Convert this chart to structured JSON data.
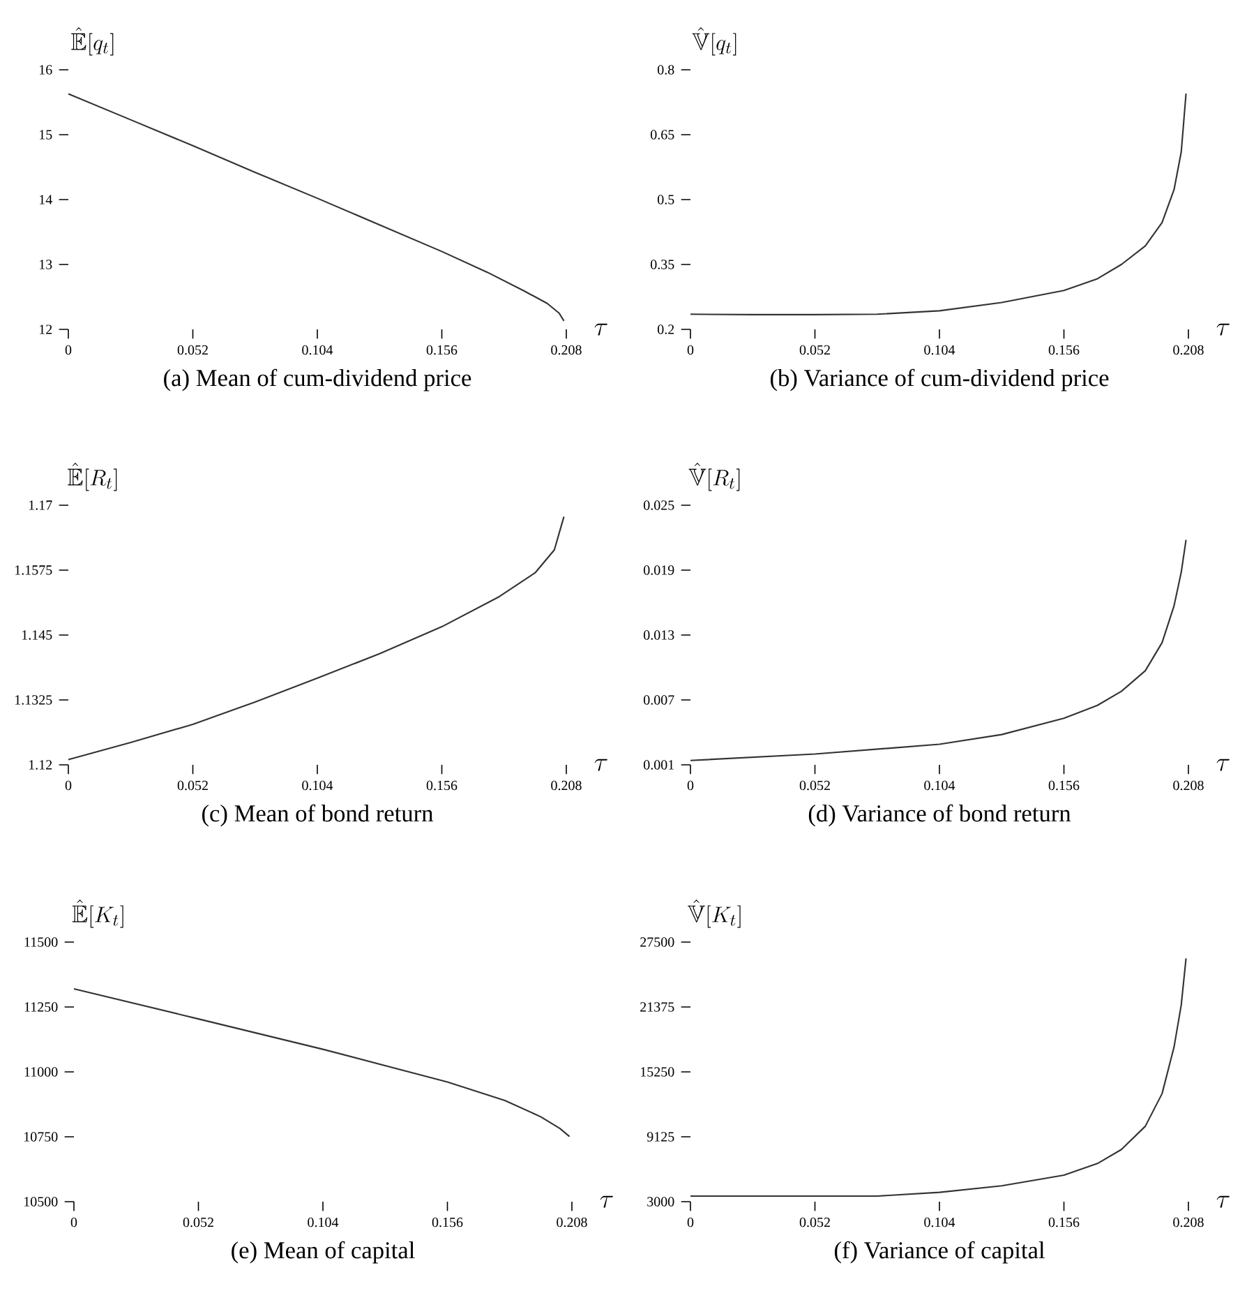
{
  "chart_data": [
    {
      "type": "line",
      "title": "(a) Mean of cum-dividend price",
      "xlabel": "\\tau",
      "ylabel": "\\hat{\\mathbb{E}}[q_t]",
      "color": "#333333",
      "x": [
        0,
        0.026,
        0.052,
        0.078,
        0.104,
        0.13,
        0.156,
        0.175,
        0.19,
        0.2,
        0.205,
        0.207
      ],
      "values": [
        15.63,
        15.23,
        14.83,
        14.42,
        14.02,
        13.61,
        13.2,
        12.88,
        12.6,
        12.4,
        12.25,
        12.13
      ],
      "xlim": [
        0,
        0.208
      ],
      "ylim": [
        12,
        16
      ],
      "xticks": [
        0,
        0.052,
        0.104,
        0.156,
        0.208
      ],
      "yticks": [
        12,
        13,
        14,
        15,
        16
      ]
    },
    {
      "type": "line",
      "title": "(b) Variance of cum-dividend price",
      "xlabel": "\\tau",
      "ylabel": "\\hat{\\mathbb{V}}[q_t]",
      "color": "#333333",
      "x": [
        0,
        0.026,
        0.052,
        0.078,
        0.104,
        0.13,
        0.156,
        0.17,
        0.18,
        0.19,
        0.197,
        0.202,
        0.205,
        0.207
      ],
      "values": [
        0.235,
        0.234,
        0.234,
        0.235,
        0.243,
        0.262,
        0.29,
        0.317,
        0.35,
        0.393,
        0.447,
        0.523,
        0.61,
        0.745
      ],
      "xlim": [
        0,
        0.208
      ],
      "ylim": [
        0.2,
        0.8
      ],
      "xticks": [
        0,
        0.052,
        0.104,
        0.156,
        0.208
      ],
      "yticks": [
        0.2,
        0.35,
        0.5,
        0.65,
        0.8
      ]
    },
    {
      "type": "line",
      "title": "(c) Mean of bond return",
      "xlabel": "\\tau",
      "ylabel": "\\hat{\\mathbb{E}}[R_t]",
      "color": "#333333",
      "x": [
        0,
        0.026,
        0.052,
        0.078,
        0.104,
        0.13,
        0.156,
        0.18,
        0.195,
        0.203,
        0.207
      ],
      "values": [
        1.121,
        1.1243,
        1.1278,
        1.1321,
        1.1367,
        1.1414,
        1.1466,
        1.1524,
        1.157,
        1.1614,
        1.1678
      ],
      "xlim": [
        0,
        0.208
      ],
      "ylim": [
        1.12,
        1.17
      ],
      "xticks": [
        0,
        0.052,
        0.104,
        0.156,
        0.208
      ],
      "yticks": [
        1.12,
        1.1325,
        1.145,
        1.1575,
        1.17
      ]
    },
    {
      "type": "line",
      "title": "(d) Variance of bond return",
      "xlabel": "\\tau",
      "ylabel": "\\hat{\\mathbb{V}}[R_t]",
      "color": "#333333",
      "x": [
        0,
        0.052,
        0.104,
        0.13,
        0.156,
        0.17,
        0.18,
        0.19,
        0.197,
        0.202,
        0.205,
        0.207
      ],
      "values": [
        0.0014,
        0.002,
        0.0029,
        0.0038,
        0.0053,
        0.0065,
        0.0078,
        0.0097,
        0.0123,
        0.0157,
        0.0188,
        0.0218
      ],
      "xlim": [
        0,
        0.208
      ],
      "ylim": [
        0.001,
        0.025
      ],
      "xticks": [
        0,
        0.052,
        0.104,
        0.156,
        0.208
      ],
      "yticks": [
        0.001,
        0.007,
        0.013,
        0.019,
        0.025
      ]
    },
    {
      "type": "line",
      "title": "(e) Mean of capital",
      "xlabel": "\\tau",
      "ylabel": "\\hat{\\mathbb{E}}[K_t]",
      "color": "#333333",
      "x": [
        0,
        0.052,
        0.104,
        0.156,
        0.18,
        0.195,
        0.203,
        0.207
      ],
      "values": [
        11320,
        11204,
        11087,
        10961,
        10890,
        10827,
        10782,
        10751
      ],
      "xlim": [
        0,
        0.208
      ],
      "ylim": [
        10500,
        11500
      ],
      "xticks": [
        0,
        0.052,
        0.104,
        0.156,
        0.208
      ],
      "yticks": [
        10500,
        10750,
        11000,
        11250,
        11500
      ]
    },
    {
      "type": "line",
      "title": "(f) Variance of capital",
      "xlabel": "\\tau",
      "ylabel": "\\hat{\\mathbb{V}}[K_t]",
      "color": "#333333",
      "x": [
        0,
        0.052,
        0.078,
        0.104,
        0.13,
        0.156,
        0.17,
        0.18,
        0.19,
        0.197,
        0.202,
        0.205,
        0.207
      ],
      "values": [
        3530,
        3530,
        3530,
        3880,
        4500,
        5500,
        6600,
        7920,
        10120,
        13200,
        17600,
        21560,
        25960
      ],
      "xlim": [
        0,
        0.208
      ],
      "ylim": [
        3000,
        27500
      ],
      "xticks": [
        0,
        0.052,
        0.104,
        0.156,
        0.208
      ],
      "yticks": [
        3000,
        9125,
        15250,
        21375,
        27500
      ]
    }
  ]
}
